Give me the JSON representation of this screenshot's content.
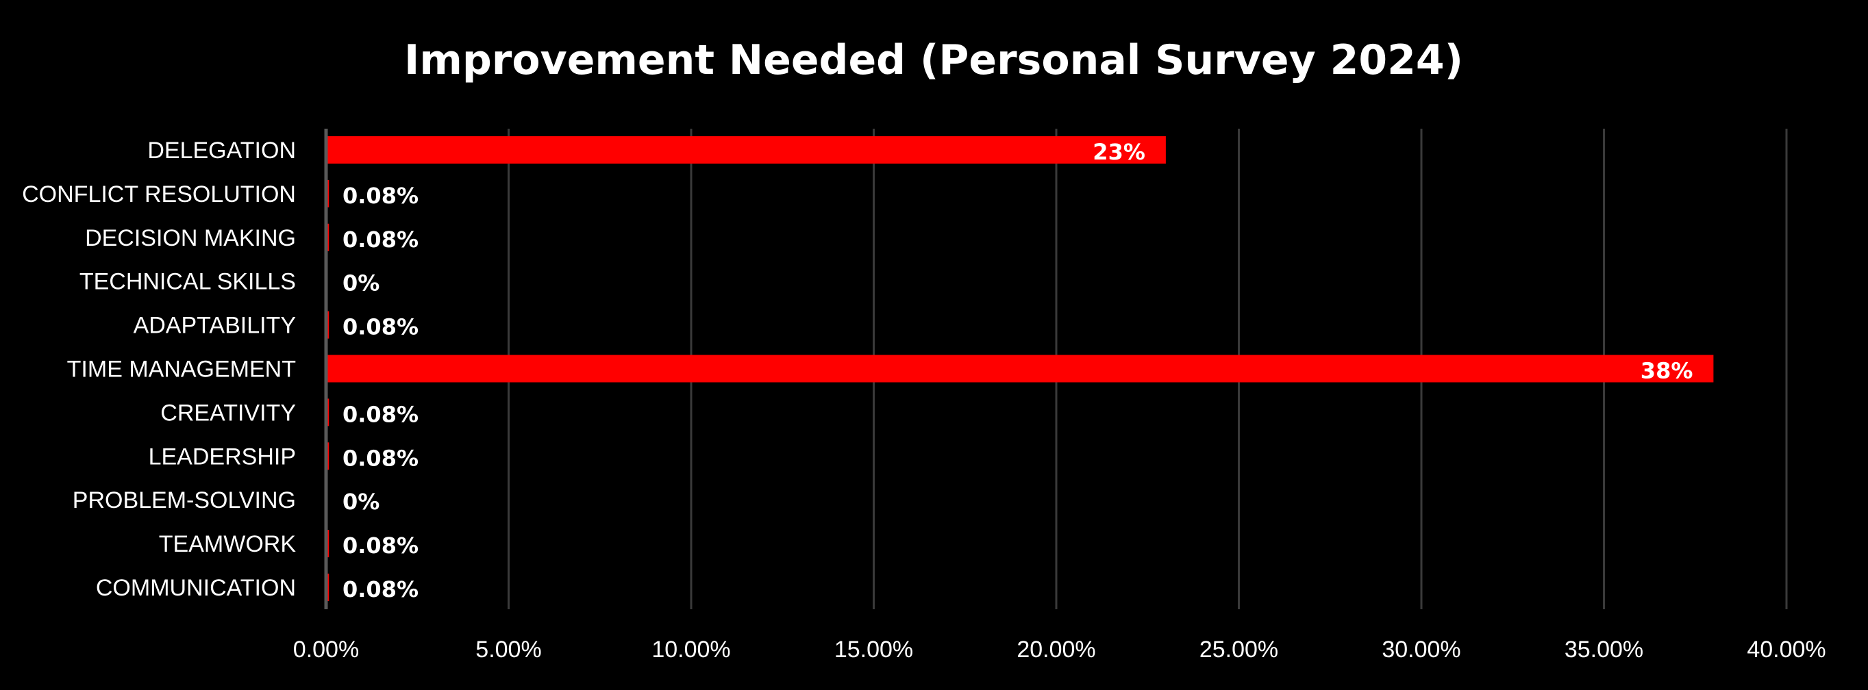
{
  "chart_data": {
    "type": "bar",
    "orientation": "horizontal",
    "title": "Improvement Needed (Personal Survey 2024)",
    "categories": [
      "DELEGATION",
      "CONFLICT RESOLUTION",
      "DECISION MAKING",
      "TECHNICAL SKILLS",
      "ADAPTABILITY",
      "TIME MANAGEMENT",
      "CREATIVITY",
      "LEADERSHIP",
      "PROBLEM-SOLVING",
      "TEAMWORK",
      "COMMUNICATION"
    ],
    "values": [
      23,
      0.08,
      0.08,
      0,
      0.08,
      38,
      0.08,
      0.08,
      0,
      0.08,
      0.08
    ],
    "data_labels": [
      "23%",
      "0.08%",
      "0.08%",
      "0%",
      "0.08%",
      "38%",
      "0.08%",
      "0.08%",
      "0%",
      "0.08%",
      "0.08%"
    ],
    "xlim": [
      0,
      40
    ],
    "xticks": [
      0,
      5,
      10,
      15,
      20,
      25,
      30,
      35,
      40
    ],
    "xtick_labels": [
      "0.00%",
      "5.00%",
      "10.00%",
      "15.00%",
      "20.00%",
      "25.00%",
      "30.00%",
      "35.00%",
      "40.00%"
    ],
    "grid": true,
    "legend": "none",
    "colors": {
      "background": "#000000",
      "bar": "#ff0000",
      "grid": "#3a3a3a",
      "axis": "#5a5a5a",
      "text": "#ffffff"
    }
  }
}
